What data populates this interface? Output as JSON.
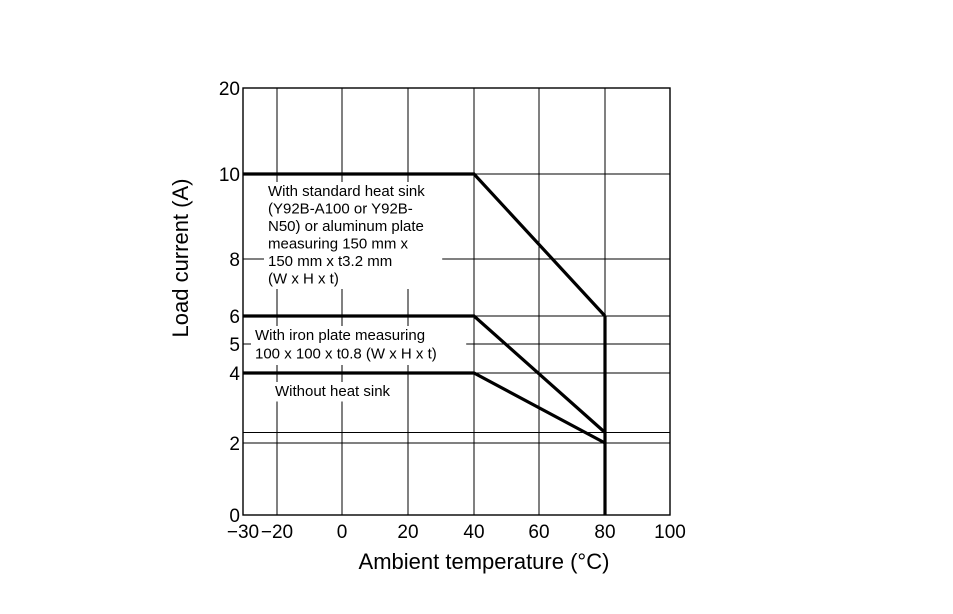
{
  "chart_data": {
    "type": "line",
    "xlabel": "Ambient temperature (°C)",
    "ylabel": "Load current (A)",
    "x_ticks": [
      -30,
      -20,
      0,
      20,
      40,
      60,
      80,
      100
    ],
    "x_tick_labels": [
      "−30",
      "−20",
      "0",
      "20",
      "40",
      "60",
      "80",
      "100"
    ],
    "y_ticks": [
      0,
      2,
      4,
      5,
      6,
      8,
      10,
      20
    ],
    "y_tick_labels": [
      "0",
      "2",
      "4",
      "5",
      "6",
      "8",
      "10",
      "20"
    ],
    "xlim": [
      -30,
      100
    ],
    "ylim": [
      0,
      20
    ],
    "grid": true,
    "series": [
      {
        "label_lines": [
          "With standard heat sink",
          "(Y92B-A100 or Y92B-",
          "N50) or aluminum plate",
          "measuring 150 mm x",
          "150 mm x t3.2 mm",
          "(W x H x t)"
        ],
        "x": [
          -30,
          40,
          80
        ],
        "y": [
          10,
          10,
          6
        ]
      },
      {
        "label_lines": [
          "With iron plate measuring",
          "100 x 100 x t0.8 (W x H x t)"
        ],
        "x": [
          -30,
          40,
          80
        ],
        "y": [
          6,
          6,
          2.3
        ]
      },
      {
        "label_lines": [
          "Without heat sink"
        ],
        "x": [
          -30,
          40,
          80
        ],
        "y": [
          4,
          4,
          2
        ]
      }
    ],
    "cutoff": {
      "x": 80,
      "y_from": 6,
      "y_to": 0
    },
    "reference_lines": [
      {
        "style": "dashed",
        "x": [
          40,
          80
        ],
        "y": [
          6,
          6
        ]
      },
      {
        "style": "dashed",
        "x": [
          -30,
          80
        ],
        "y": [
          2,
          2
        ]
      },
      {
        "style": "solid",
        "x": [
          -30,
          100
        ],
        "y": [
          2.3,
          2.3
        ]
      }
    ]
  }
}
